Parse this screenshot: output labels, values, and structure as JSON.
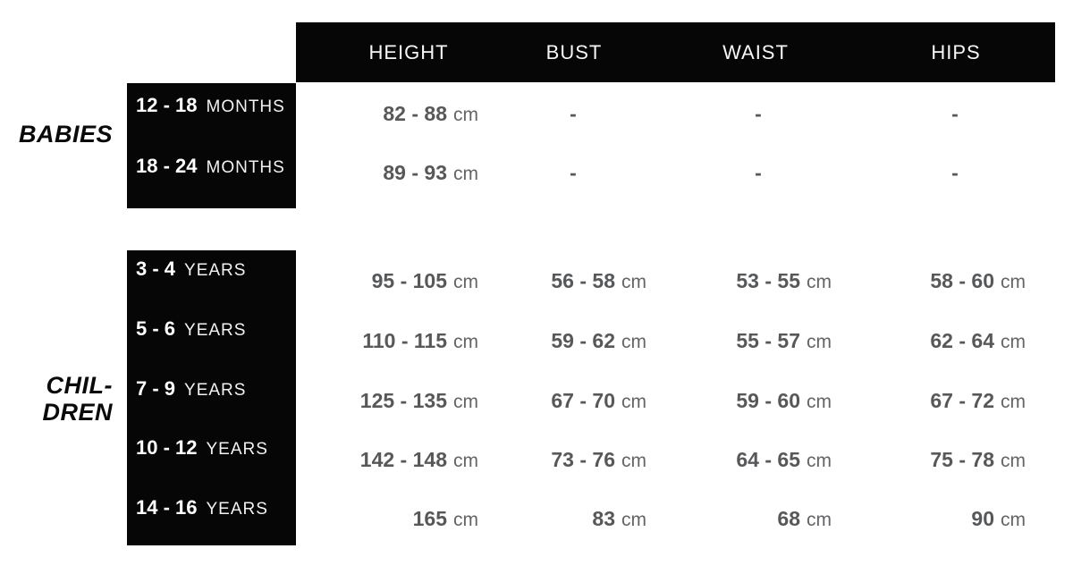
{
  "table": {
    "title": "size-chart",
    "unit_suffix": "cm",
    "columns": [
      "HEIGHT",
      "BUST",
      "WAIST",
      "HIPS"
    ],
    "groups": [
      {
        "name": "BABIES",
        "name_lines": [
          "BABIES"
        ],
        "rows": [
          {
            "age": "12 - 18",
            "unit": "MONTHS",
            "height": "82 - 88",
            "bust": "-",
            "waist": "-",
            "hips": "-"
          },
          {
            "age": "18 - 24",
            "unit": "MONTHS",
            "height": "89 - 93",
            "bust": "-",
            "waist": "-",
            "hips": "-"
          }
        ]
      },
      {
        "name": "CHILDREN",
        "name_lines": [
          "CHIL-",
          "DREN"
        ],
        "rows": [
          {
            "age": "3 - 4",
            "unit": "YEARS",
            "height": "95 - 105",
            "bust": "56 - 58",
            "waist": "53 - 55",
            "hips": "58 - 60"
          },
          {
            "age": "5 - 6",
            "unit": "YEARS",
            "height": "110 - 115",
            "bust": "59 - 62",
            "waist": "55 - 57",
            "hips": "62 - 64"
          },
          {
            "age": "7 - 9",
            "unit": "YEARS",
            "height": "125 - 135",
            "bust": "67 - 70",
            "waist": "59 - 60",
            "hips": "67 - 72"
          },
          {
            "age": "10 - 12",
            "unit": "YEARS",
            "height": "142 - 148",
            "bust": "73 - 76",
            "waist": "64 - 65",
            "hips": "75 - 78"
          },
          {
            "age": "14 - 16",
            "unit": "YEARS",
            "height": "165",
            "bust": "83",
            "waist": "68",
            "hips": "90"
          }
        ]
      }
    ]
  },
  "colors": {
    "background": "#ffffff",
    "box_black": "#060606",
    "header_text": "#f7f7f7",
    "value_number_gray": "#57585a",
    "value_unit_gray": "#646468",
    "age_number_white": "#ffffff",
    "group_name_black": "#0a0a0a"
  }
}
